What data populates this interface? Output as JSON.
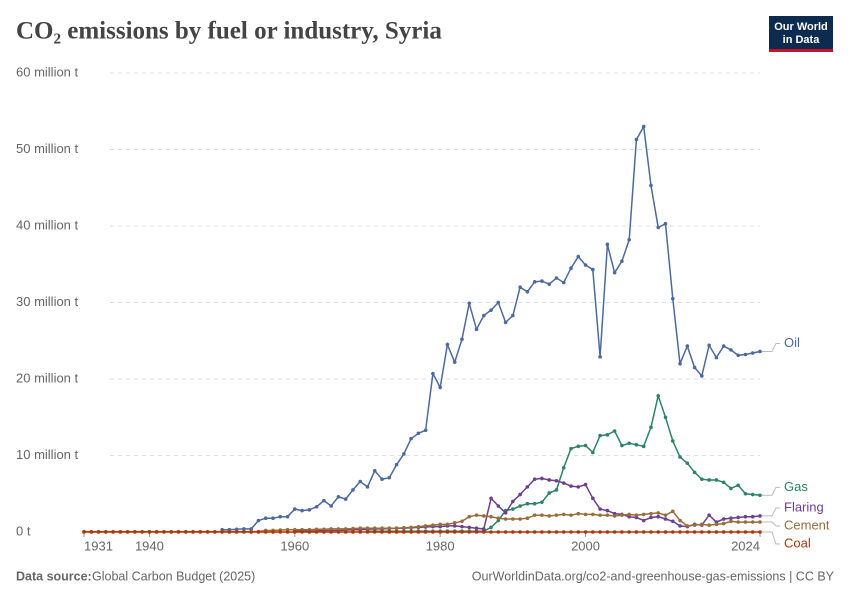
{
  "chart_data": {
    "type": "line",
    "title": "CO₂ emissions by fuel or industry, Syria",
    "logo": [
      "Our World",
      "in Data"
    ],
    "source_label": "Data source:",
    "source": "Global Carbon Budget (2025)",
    "url": "OurWorldinData.org/co2-and-greenhouse-gas-emissions | CC BY",
    "x": [
      1931,
      1932,
      1933,
      1934,
      1935,
      1936,
      1937,
      1938,
      1939,
      1940,
      1941,
      1942,
      1943,
      1944,
      1945,
      1946,
      1947,
      1948,
      1949,
      1950,
      1951,
      1952,
      1953,
      1954,
      1955,
      1956,
      1957,
      1958,
      1959,
      1960,
      1961,
      1962,
      1963,
      1964,
      1965,
      1966,
      1967,
      1968,
      1969,
      1970,
      1971,
      1972,
      1973,
      1974,
      1975,
      1976,
      1977,
      1978,
      1979,
      1980,
      1981,
      1982,
      1983,
      1984,
      1985,
      1986,
      1987,
      1988,
      1989,
      1990,
      1991,
      1992,
      1993,
      1994,
      1995,
      1996,
      1997,
      1998,
      1999,
      2000,
      2001,
      2002,
      2003,
      2004,
      2005,
      2006,
      2007,
      2008,
      2009,
      2010,
      2011,
      2012,
      2013,
      2014,
      2015,
      2016,
      2017,
      2018,
      2019,
      2020,
      2021,
      2022,
      2023,
      2024
    ],
    "xlim": [
      1931,
      2024
    ],
    "xticks": [
      1931,
      1940,
      1960,
      1980,
      2000,
      2024
    ],
    "ylim": [
      0,
      60
    ],
    "yticks": [
      {
        "value": 0,
        "label": "0 t"
      },
      {
        "value": 10,
        "label": "10 million t"
      },
      {
        "value": 20,
        "label": "20 million t"
      },
      {
        "value": 30,
        "label": "30 million t"
      },
      {
        "value": 40,
        "label": "40 million t"
      },
      {
        "value": 50,
        "label": "50 million t"
      },
      {
        "value": 60,
        "label": "60 million t"
      }
    ],
    "grid": true,
    "series": [
      {
        "name": "Oil",
        "color": "#4c6a9c",
        "values": [
          null,
          null,
          null,
          null,
          null,
          null,
          null,
          null,
          null,
          null,
          null,
          null,
          null,
          null,
          null,
          null,
          null,
          null,
          null,
          0.3,
          0.3,
          0.35,
          0.4,
          0.4,
          1.5,
          1.8,
          1.8,
          2.0,
          2.0,
          3.0,
          2.8,
          2.9,
          3.3,
          4.1,
          3.4,
          4.6,
          4.3,
          5.5,
          6.6,
          5.9,
          8.0,
          6.9,
          7.1,
          8.8,
          10.2,
          12.2,
          12.9,
          13.3,
          20.7,
          18.9,
          24.5,
          22.2,
          25.2,
          29.9,
          26.5,
          28.3,
          29.0,
          30.0,
          27.4,
          28.3,
          32.0,
          31.4,
          32.7,
          32.8,
          32.4,
          33.2,
          32.6,
          34.5,
          36.0,
          34.9,
          34.3,
          22.9,
          37.6,
          33.9,
          35.4,
          38.2,
          51.3,
          53.0,
          45.3,
          39.8,
          40.3,
          30.5,
          22.0,
          24.3,
          21.5,
          20.4,
          24.4,
          22.8,
          24.3,
          23.8,
          23.1,
          23.2,
          23.4,
          23.6
        ]
      },
      {
        "name": "Gas",
        "color": "#2c8465",
        "values": [
          null,
          null,
          null,
          null,
          null,
          null,
          null,
          null,
          null,
          null,
          null,
          null,
          null,
          null,
          null,
          null,
          null,
          null,
          null,
          null,
          null,
          null,
          null,
          null,
          null,
          null,
          null,
          null,
          null,
          null,
          null,
          null,
          null,
          null,
          null,
          null,
          null,
          null,
          null,
          0.1,
          0.1,
          0.1,
          0.1,
          0.1,
          0.1,
          0.1,
          0.1,
          0.1,
          0.1,
          0.1,
          0.1,
          0.1,
          0.1,
          0.1,
          0.1,
          0.1,
          0.6,
          1.5,
          2.8,
          3.0,
          3.4,
          3.7,
          3.7,
          3.9,
          5.1,
          5.5,
          8.4,
          10.9,
          11.2,
          11.3,
          10.4,
          12.6,
          12.7,
          13.2,
          11.3,
          11.6,
          11.4,
          11.2,
          13.7,
          17.8,
          15.0,
          11.9,
          9.8,
          9.0,
          7.8,
          6.9,
          6.8,
          6.8,
          6.5,
          5.7,
          6.1,
          5.0,
          4.9,
          4.8
        ]
      },
      {
        "name": "Flaring",
        "color": "#6d3e91",
        "values": [
          null,
          null,
          null,
          null,
          null,
          null,
          null,
          null,
          null,
          null,
          null,
          null,
          null,
          null,
          null,
          null,
          null,
          null,
          null,
          null,
          null,
          null,
          null,
          null,
          null,
          null,
          null,
          null,
          null,
          0.1,
          0.1,
          0.1,
          0.15,
          0.2,
          0.2,
          0.2,
          0.25,
          0.3,
          0.3,
          0.35,
          0.4,
          0.4,
          0.45,
          0.5,
          0.5,
          0.55,
          0.6,
          0.65,
          0.7,
          0.7,
          0.8,
          0.8,
          0.7,
          0.6,
          0.5,
          0.4,
          4.4,
          3.4,
          2.5,
          4.0,
          4.9,
          5.9,
          6.9,
          7.0,
          6.8,
          6.7,
          6.4,
          6.0,
          5.9,
          6.2,
          4.4,
          3.0,
          2.8,
          2.4,
          2.3,
          2.0,
          1.9,
          1.5,
          1.9,
          2.0,
          1.7,
          1.4,
          0.8,
          0.7,
          1.0,
          0.9,
          2.2,
          1.3,
          1.7,
          1.8,
          1.9,
          2.0,
          2.0,
          2.1
        ]
      },
      {
        "name": "Cement",
        "color": "#996d39",
        "values": [
          0.05,
          0.05,
          0.05,
          0.05,
          0.05,
          0.05,
          0.05,
          0.05,
          0.05,
          0.05,
          0.05,
          0.05,
          0.05,
          0.05,
          0.05,
          0.05,
          0.05,
          0.05,
          0.05,
          0.05,
          0.05,
          0.05,
          0.05,
          0.05,
          0.05,
          0.2,
          0.2,
          0.25,
          0.3,
          0.3,
          0.3,
          0.3,
          0.35,
          0.35,
          0.4,
          0.4,
          0.4,
          0.45,
          0.5,
          0.5,
          0.5,
          0.5,
          0.5,
          0.5,
          0.55,
          0.6,
          0.7,
          0.8,
          0.9,
          1.0,
          1.0,
          1.2,
          1.4,
          2.0,
          2.2,
          2.1,
          2.0,
          1.8,
          1.7,
          1.7,
          1.7,
          1.8,
          2.2,
          2.2,
          2.1,
          2.2,
          2.3,
          2.2,
          2.4,
          2.3,
          2.3,
          2.2,
          2.2,
          2.1,
          2.2,
          2.3,
          2.2,
          2.3,
          2.4,
          2.5,
          2.2,
          2.7,
          1.5,
          0.8,
          0.9,
          1.0,
          0.9,
          1.0,
          1.1,
          1.4,
          1.3,
          1.3,
          1.3,
          1.3
        ]
      },
      {
        "name": "Coal",
        "color": "#b13507",
        "values": [
          0,
          0,
          0,
          0,
          0,
          0,
          0,
          0,
          0,
          0,
          0,
          0,
          0,
          0,
          0,
          0,
          0,
          0,
          0,
          0,
          0,
          0,
          0,
          0,
          0,
          0,
          0,
          0,
          0,
          0,
          0,
          0,
          0,
          0,
          0,
          0,
          0,
          0,
          0,
          0,
          0,
          0,
          0,
          0,
          0,
          0,
          0,
          0,
          0,
          0,
          0,
          0,
          0,
          0,
          0,
          0,
          0,
          0,
          0,
          0,
          0,
          0,
          0,
          0,
          0,
          0,
          0,
          0,
          0,
          0,
          0,
          0,
          0,
          0,
          0,
          0,
          0,
          0,
          0,
          0,
          0,
          0,
          0,
          0,
          0,
          0,
          0,
          0,
          0,
          0,
          0,
          0,
          0,
          0
        ]
      }
    ]
  }
}
